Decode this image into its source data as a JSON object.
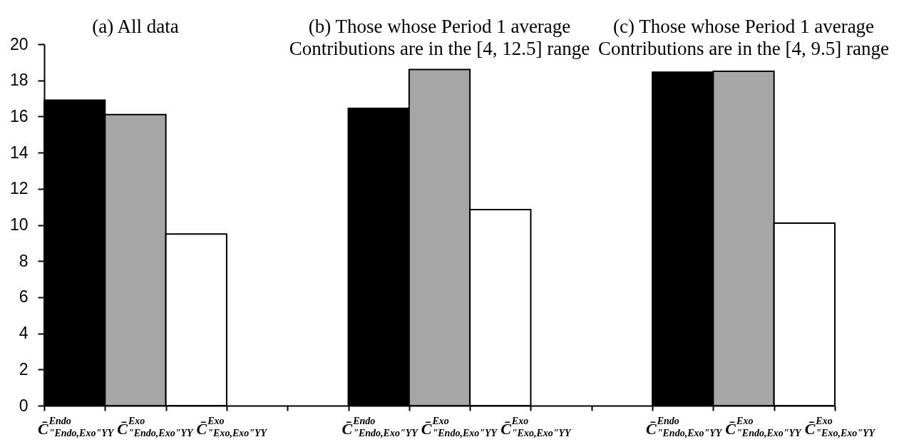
{
  "chart_data": {
    "type": "bar",
    "categories": [
      "C̄$^{Endo}$$_{\"Endo,Exo\"YY}$",
      "C̄$^{Exo}$$_{\"Endo,Exo\"YY}$",
      "C̄$^{Exo}$$_{\"Exo,Exo\"YY}$",
      null,
      null,
      "C̄$^{Endo}$$_{\"Endo,Exo\"YY}$",
      "C̄$^{Exo}$$_{\"Endo,Exo\"YY}$",
      "C̄$^{Exo}$$_{\"Exo,Exo\"YY}$",
      null,
      null,
      "C̄$^{Endo}$$_{\"Endo,Exo\"YY}$",
      "C̄$^{Exo}$$_{\"Endo,Exo\"YY}$",
      "C̄$^{Exo}$$_{\"Exo,Exo\"YY}$"
    ],
    "values": [
      16.9,
      16.1,
      9.5,
      null,
      null,
      16.45,
      18.6,
      10.85,
      null,
      null,
      18.45,
      18.5,
      10.1
    ],
    "colors": [
      "#000000",
      "#a6a6a6",
      "#ffffff",
      null,
      null,
      "#000000",
      "#a6a6a6",
      "#ffffff",
      null,
      null,
      "#000000",
      "#a6a6a6",
      "#ffffff"
    ],
    "ylim": [
      0,
      20
    ],
    "yticks": [
      0,
      2,
      4,
      6,
      8,
      10,
      12,
      14,
      16,
      18,
      20
    ],
    "annotations": [
      "(a) All data",
      "(b) Those whose Period 1 average\nContributions are in the [4, 12.5] range",
      "(c) Those whose Period 1 average\nContributions are in the [4, 9.5] range"
    ]
  }
}
